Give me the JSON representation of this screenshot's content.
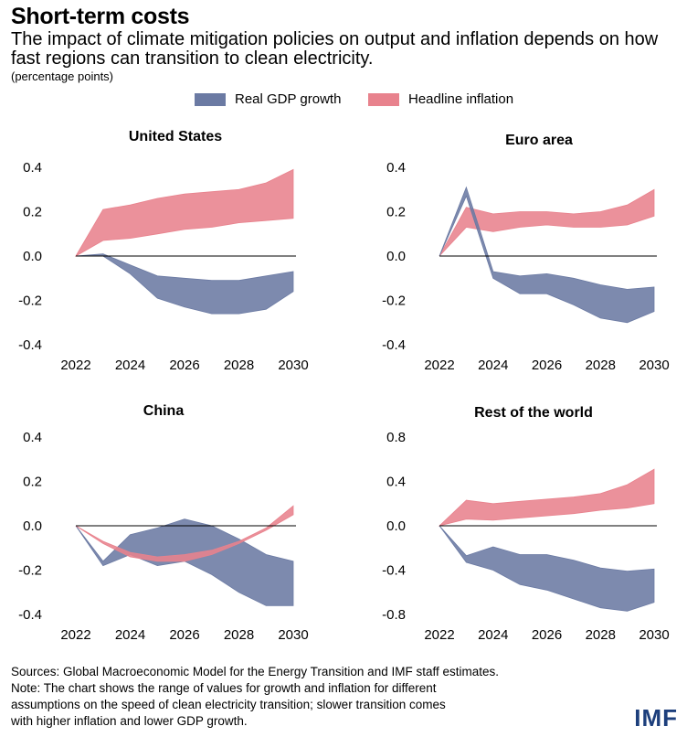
{
  "header": {
    "title": "Short-term costs",
    "subtitle": "The impact of climate mitigation policies on output and inflation depends on how fast regions can transition to clean electricity.",
    "unit": "(percentage points)"
  },
  "legend": {
    "gdp_label": "Real GDP growth",
    "inflation_label": "Headline inflation",
    "gdp_color": "#6b7aa3",
    "inflation_color": "#e8828d"
  },
  "footer": {
    "line1": "Sources: Global Macroeconomic Model for the Energy Transition and IMF staff estimates.",
    "line2": "Note: The chart shows the range of values for growth and inflation for different",
    "line3": "assumptions on the speed of clean electricity transition; slower transition comes",
    "line4": "with higher inflation and lower GDP growth.",
    "logo": "IMF"
  },
  "chart_data": [
    {
      "type": "area",
      "title": "United States",
      "x": [
        2022,
        2023,
        2024,
        2025,
        2026,
        2027,
        2028,
        2029,
        2030
      ],
      "xticks": [
        "2022",
        "2024",
        "2026",
        "2028",
        "2030"
      ],
      "yticks": [
        "0.4",
        "0.2",
        "0.0",
        "-0.2",
        "-0.4"
      ],
      "ylim": [
        -0.4,
        0.4
      ],
      "series": [
        {
          "name": "Headline inflation",
          "upper": [
            0,
            0.21,
            0.23,
            0.26,
            0.28,
            0.29,
            0.3,
            0.33,
            0.39
          ],
          "lower": [
            0,
            0.07,
            0.08,
            0.1,
            0.12,
            0.13,
            0.15,
            0.16,
            0.17
          ]
        },
        {
          "name": "Real GDP growth",
          "upper": [
            0,
            0.01,
            -0.04,
            -0.09,
            -0.1,
            -0.11,
            -0.11,
            -0.09,
            -0.07
          ],
          "lower": [
            0,
            0.0,
            -0.08,
            -0.19,
            -0.23,
            -0.26,
            -0.26,
            -0.24,
            -0.16
          ]
        }
      ]
    },
    {
      "type": "area",
      "title": "Euro area",
      "x": [
        2022,
        2023,
        2024,
        2025,
        2026,
        2027,
        2028,
        2029,
        2030
      ],
      "xticks": [
        "2022",
        "2024",
        "2026",
        "2028",
        "2030"
      ],
      "yticks": [
        "0.4",
        "0.2",
        "0.0",
        "-0.2",
        "-0.4"
      ],
      "ylim": [
        -0.4,
        0.4
      ],
      "series": [
        {
          "name": "Headline inflation",
          "upper": [
            0,
            0.22,
            0.19,
            0.2,
            0.2,
            0.19,
            0.2,
            0.23,
            0.3
          ],
          "lower": [
            0,
            0.13,
            0.11,
            0.13,
            0.14,
            0.13,
            0.13,
            0.14,
            0.18
          ]
        },
        {
          "name": "Real GDP growth",
          "upper": [
            0,
            0.31,
            -0.07,
            -0.09,
            -0.08,
            -0.1,
            -0.13,
            -0.15,
            -0.14
          ],
          "lower": [
            0,
            0.27,
            -0.1,
            -0.17,
            -0.17,
            -0.22,
            -0.28,
            -0.3,
            -0.25
          ]
        }
      ]
    },
    {
      "type": "area",
      "title": "China",
      "x": [
        2022,
        2023,
        2024,
        2025,
        2026,
        2027,
        2028,
        2029,
        2030
      ],
      "xticks": [
        "2022",
        "2024",
        "2026",
        "2028",
        "2030"
      ],
      "yticks": [
        "0.4",
        "0.2",
        "0.0",
        "-0.2",
        "-0.4"
      ],
      "ylim": [
        -0.4,
        0.4
      ],
      "series": [
        {
          "name": "Real GDP growth",
          "upper": [
            0,
            -0.16,
            -0.04,
            -0.01,
            0.03,
            0.0,
            -0.06,
            -0.13,
            -0.16
          ],
          "lower": [
            0,
            -0.18,
            -0.13,
            -0.18,
            -0.16,
            -0.22,
            -0.3,
            -0.36,
            -0.36
          ]
        },
        {
          "name": "Headline inflation",
          "upper": [
            0,
            -0.07,
            -0.12,
            -0.14,
            -0.13,
            -0.11,
            -0.07,
            -0.01,
            0.09
          ],
          "lower": [
            0,
            -0.08,
            -0.14,
            -0.16,
            -0.16,
            -0.13,
            -0.08,
            -0.02,
            0.05
          ]
        }
      ]
    },
    {
      "type": "area",
      "title": "Rest of the world",
      "x": [
        2022,
        2023,
        2024,
        2025,
        2026,
        2027,
        2028,
        2029,
        2030
      ],
      "xticks": [
        "2022",
        "2024",
        "2026",
        "2028",
        "2030"
      ],
      "yticks": [
        "0.8",
        "0.4",
        "0.0",
        "-0.4",
        "-0.8"
      ],
      "ylim": [
        -0.8,
        0.8
      ],
      "series": [
        {
          "name": "Headline inflation",
          "upper": [
            0,
            0.23,
            0.2,
            0.22,
            0.24,
            0.26,
            0.29,
            0.37,
            0.51
          ],
          "lower": [
            0,
            0.06,
            0.05,
            0.07,
            0.09,
            0.11,
            0.14,
            0.16,
            0.2
          ]
        },
        {
          "name": "Real GDP growth",
          "upper": [
            0,
            -0.27,
            -0.19,
            -0.26,
            -0.26,
            -0.31,
            -0.38,
            -0.41,
            -0.39
          ],
          "lower": [
            0,
            -0.33,
            -0.4,
            -0.53,
            -0.58,
            -0.66,
            -0.74,
            -0.77,
            -0.69
          ]
        }
      ]
    }
  ]
}
